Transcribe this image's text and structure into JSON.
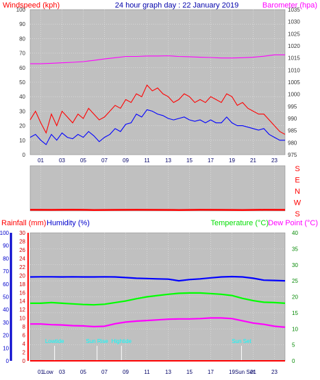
{
  "header": {
    "left_label": "Windspeed (kph)",
    "title": "24 hour graph day : 22 January 2019",
    "right_label": "Barometer (hpa)"
  },
  "colors": {
    "background": "#ffffff",
    "plot_bg": "#c0c0c0",
    "grid": "#e8e8e8",
    "gust": "#ff0000",
    "avg_wind": "#0000ff",
    "barometer": "#ff00ff",
    "humidity": "#0000ff",
    "temperature": "#00ff00",
    "dew_point": "#ff00ff",
    "rainfall": "#ff0000",
    "daylight": "#00ffff"
  },
  "chart_data": [
    {
      "type": "line",
      "panel": "wind-barometer",
      "x_ticks": [
        "01",
        "03",
        "05",
        "07",
        "09",
        "11",
        "13",
        "15",
        "17",
        "19",
        "21",
        "23"
      ],
      "xlim": [
        0,
        24
      ],
      "left_axis": {
        "label": "Windspeed (kph)",
        "lim": [
          0,
          100
        ],
        "ticks": [
          0,
          10,
          20,
          30,
          40,
          50,
          60,
          70,
          80,
          90,
          100
        ]
      },
      "right_axis": {
        "label": "Barometer (hpa)",
        "lim": [
          975,
          1035
        ],
        "ticks": [
          975,
          980,
          985,
          990,
          995,
          1000,
          1005,
          1010,
          1015,
          1020,
          1025,
          1030,
          1035
        ]
      },
      "grid": true,
      "series": [
        {
          "axis": "right",
          "color": "#ff00ff",
          "x": [
            0,
            1,
            2,
            3,
            4,
            5,
            6,
            7,
            8,
            9,
            10,
            11,
            12,
            13,
            14,
            15,
            16,
            17,
            18,
            19,
            20,
            21,
            22,
            23,
            24
          ],
          "y": [
            1012.6,
            1012.6,
            1012.8,
            1013.0,
            1013.2,
            1013.5,
            1014.0,
            1014.6,
            1015.1,
            1015.6,
            1015.6,
            1015.8,
            1015.8,
            1015.9,
            1015.6,
            1015.5,
            1015.3,
            1015.2,
            1015.0,
            1015.0,
            1015.1,
            1015.3,
            1015.7,
            1016.3,
            1016.3
          ]
        },
        {
          "axis": "left",
          "color": "#ff0000",
          "x": [
            0,
            0.5,
            1,
            1.5,
            2,
            2.5,
            3,
            3.5,
            4,
            4.5,
            5,
            5.5,
            6,
            6.5,
            7,
            7.5,
            8,
            8.5,
            9,
            9.5,
            10,
            10.5,
            11,
            11.5,
            12,
            12.5,
            13,
            13.5,
            14,
            14.5,
            15,
            15.5,
            16,
            16.5,
            17,
            17.5,
            18,
            18.5,
            19,
            19.5,
            20,
            20.5,
            21,
            21.5,
            22,
            22.5,
            23,
            23.5,
            24
          ],
          "y": [
            24,
            30,
            22,
            15,
            28,
            20,
            30,
            26,
            22,
            28,
            25,
            32,
            28,
            24,
            26,
            30,
            34,
            32,
            38,
            36,
            42,
            40,
            48,
            44,
            46,
            42,
            40,
            36,
            38,
            42,
            40,
            36,
            38,
            36,
            40,
            38,
            36,
            42,
            40,
            34,
            36,
            32,
            30,
            28,
            28,
            24,
            20,
            16,
            14
          ]
        },
        {
          "axis": "left",
          "color": "#0000ff",
          "x": [
            0,
            0.5,
            1,
            1.5,
            2,
            2.5,
            3,
            3.5,
            4,
            4.5,
            5,
            5.5,
            6,
            6.5,
            7,
            7.5,
            8,
            8.5,
            9,
            9.5,
            10,
            10.5,
            11,
            11.5,
            12,
            12.5,
            13,
            13.5,
            14,
            14.5,
            15,
            15.5,
            16,
            16.5,
            17,
            17.5,
            18,
            18.5,
            19,
            19.5,
            20,
            20.5,
            21,
            21.5,
            22,
            22.5,
            23,
            23.5,
            24
          ],
          "y": [
            12,
            14,
            10,
            7,
            14,
            10,
            15,
            12,
            11,
            14,
            12,
            16,
            13,
            9,
            12,
            14,
            18,
            16,
            21,
            22,
            28,
            26,
            31,
            30,
            28,
            27,
            25,
            24,
            25,
            26,
            24,
            23,
            24,
            22,
            24,
            22,
            22,
            26,
            22,
            20,
            20,
            19,
            18,
            17,
            18,
            14,
            12,
            10,
            10
          ]
        }
      ]
    },
    {
      "type": "line",
      "panel": "wind-direction",
      "right_labels": [
        "S",
        "E",
        "N",
        "W",
        "S"
      ],
      "ylim": [
        180,
        540
      ],
      "grid": true,
      "series": [
        {
          "color": "#ff0000",
          "x": [
            0,
            2,
            4,
            6,
            8,
            10,
            12,
            14,
            16,
            18,
            20,
            22,
            24
          ],
          "y": [
            189,
            188,
            190,
            187,
            188,
            189,
            188,
            187,
            189,
            188,
            187,
            189,
            188
          ]
        }
      ]
    },
    {
      "type": "line",
      "panel": "temperature-humidity-rain",
      "x_ticks": [
        "01",
        "03",
        "05",
        "07",
        "09",
        "11",
        "13",
        "15",
        "17",
        "19",
        "21",
        "23"
      ],
      "xlim": [
        0,
        24
      ],
      "humidity_axis": {
        "label": "Humidity (%)",
        "lim": [
          0,
          100
        ],
        "ticks": [
          0,
          10,
          20,
          30,
          40,
          50,
          60,
          70,
          80,
          90,
          100
        ]
      },
      "rain_axis": {
        "label": "Rainfall (mm)",
        "lim": [
          0,
          30
        ],
        "ticks": [
          0,
          2,
          4,
          6,
          8,
          10,
          12,
          14,
          16,
          18,
          20,
          22,
          24,
          26,
          28,
          30
        ]
      },
      "temp_axis": {
        "label": "Temperature (°C)",
        "lim": [
          0,
          40
        ],
        "ticks": [
          0,
          5,
          10,
          15,
          20,
          25,
          30,
          35,
          40
        ]
      },
      "dew_label": "Dew Point (°C)",
      "grid": true,
      "series": [
        {
          "axis": "humidity",
          "color": "#0000ff",
          "x": [
            0,
            1,
            2,
            3,
            4,
            5,
            6,
            7,
            8,
            9,
            10,
            11,
            12,
            13,
            14,
            15,
            16,
            17,
            18,
            19,
            20,
            21,
            22,
            23,
            24
          ],
          "y": [
            65.5,
            65.6,
            65.6,
            65.5,
            65.6,
            65.5,
            65.5,
            65.6,
            65.5,
            65.0,
            64.5,
            64.3,
            64.0,
            63.8,
            62.5,
            63.5,
            64.0,
            64.8,
            65.5,
            65.8,
            65.5,
            64.5,
            63.0,
            62.8,
            62.5
          ]
        },
        {
          "axis": "temp",
          "color": "#00ff00",
          "x": [
            0,
            1,
            2,
            3,
            4,
            5,
            6,
            7,
            8,
            9,
            10,
            11,
            12,
            13,
            14,
            15,
            16,
            17,
            18,
            19,
            20,
            21,
            22,
            23,
            24
          ],
          "y": [
            18.0,
            18.0,
            18.2,
            18.0,
            17.8,
            17.6,
            17.5,
            17.7,
            18.2,
            18.7,
            19.4,
            20.0,
            20.4,
            20.8,
            21.1,
            21.2,
            21.2,
            21.0,
            20.8,
            20.4,
            19.5,
            18.8,
            18.3,
            18.2,
            18.0
          ]
        },
        {
          "axis": "temp",
          "color": "#ff00ff",
          "x": [
            0,
            1,
            2,
            3,
            4,
            5,
            6,
            7,
            8,
            9,
            10,
            11,
            12,
            13,
            14,
            15,
            16,
            17,
            18,
            19,
            20,
            21,
            22,
            23,
            24
          ],
          "y": [
            11.5,
            11.5,
            11.3,
            11.2,
            11.0,
            10.9,
            10.7,
            10.8,
            11.6,
            12.1,
            12.4,
            12.6,
            12.8,
            13.0,
            13.1,
            13.1,
            13.2,
            13.4,
            13.4,
            13.2,
            12.5,
            11.8,
            11.4,
            10.8,
            10.5
          ]
        },
        {
          "axis": "rain",
          "color": "#ff0000",
          "x": [
            0,
            24
          ],
          "y": [
            0,
            0
          ]
        }
      ],
      "markers": [
        {
          "label": "Lowtide",
          "x": 2.3
        },
        {
          "label": "Sun Rise",
          "x": 6.3
        },
        {
          "label": "Hightide",
          "x": 8.6
        },
        {
          "label": "Sun Set",
          "x": 19.9
        }
      ],
      "extra_x_labels": [
        {
          "label": "Low",
          "x": 1.7
        },
        {
          "label": "Sun Set",
          "x": 20.2
        }
      ]
    }
  ]
}
